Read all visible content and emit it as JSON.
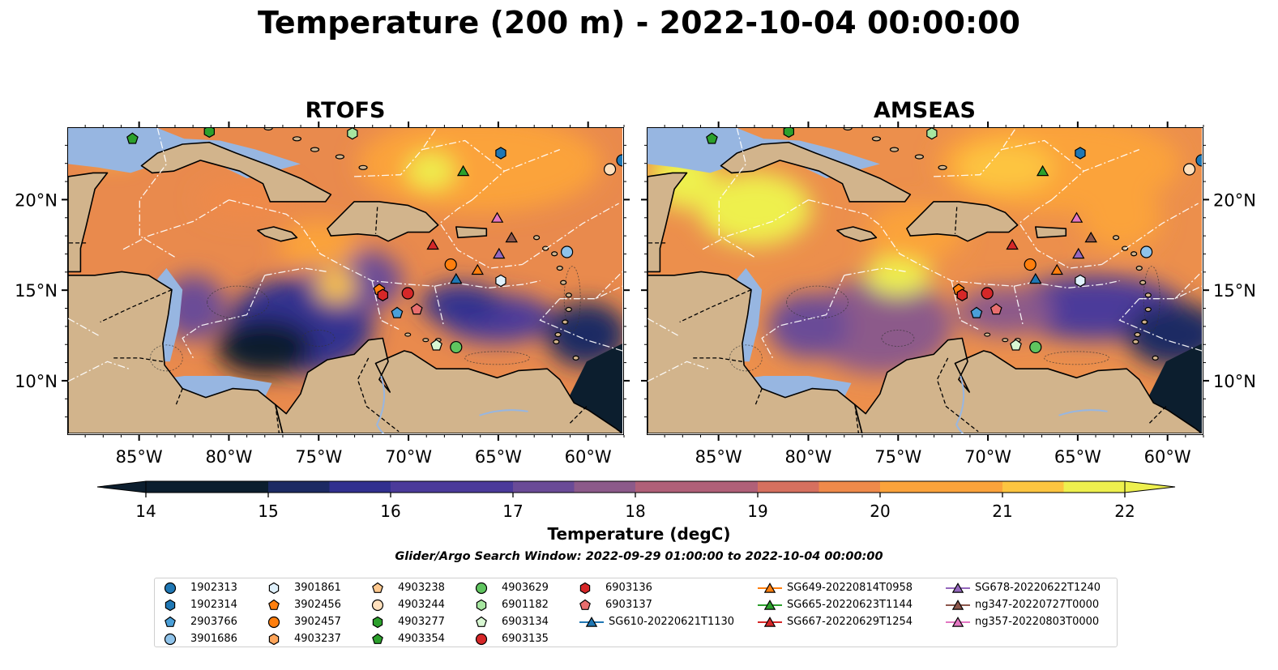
{
  "title": "Temperature (200 m) - 2022-10-04 00:00:00",
  "panels": [
    {
      "name": "RTOFS"
    },
    {
      "name": "AMSEAS"
    }
  ],
  "axes": {
    "longitude_ticks": [
      "85°W",
      "80°W",
      "75°W",
      "70°W",
      "65°W",
      "60°W"
    ],
    "latitude_ticks": [
      "20°N",
      "15°N",
      "10°N"
    ],
    "lon_range": [
      -89,
      -58
    ],
    "lat_range": [
      7,
      24
    ]
  },
  "colorbar": {
    "label": "Temperature (degC)",
    "ticks": [
      "14",
      "15",
      "16",
      "17",
      "18",
      "19",
      "20",
      "21",
      "22"
    ],
    "range": [
      14,
      22
    ],
    "colormap": [
      "#0c1e2e",
      "#1c2a63",
      "#31308f",
      "#4b3a9a",
      "#6a4b97",
      "#8c5a8a",
      "#b06078",
      "#d6705f",
      "#ef8a4a",
      "#fba33b",
      "#fdc540",
      "#eef04e"
    ]
  },
  "search_window": "Glider/Argo Search Window: 2022-09-29 01:00:00 to 2022-10-04 00:00:00",
  "colors": {
    "land": "#d2b48c",
    "shallow_water": "#97b6e1",
    "eez_lines": "#ffffff"
  },
  "legend": {
    "columns": [
      [
        {
          "label": "1902313",
          "marker": "circle",
          "color": "#1f77b4"
        },
        {
          "label": "1902314",
          "marker": "hexagon",
          "color": "#1f77b4"
        },
        {
          "label": "2903766",
          "marker": "pentagon",
          "color": "#4a9fd8"
        },
        {
          "label": "3901686",
          "marker": "circle",
          "color": "#8fc3ea"
        }
      ],
      [
        {
          "label": "3901861",
          "marker": "hexagon",
          "color": "#dff0fb"
        },
        {
          "label": "3902456",
          "marker": "pentagon",
          "color": "#ff7f0e"
        },
        {
          "label": "3902457",
          "marker": "circle",
          "color": "#ff7f0e"
        },
        {
          "label": "4903237",
          "marker": "hexagon",
          "color": "#ffa55a"
        }
      ],
      [
        {
          "label": "4903238",
          "marker": "pentagon",
          "color": "#ffc88e"
        },
        {
          "label": "4903244",
          "marker": "circle",
          "color": "#ffe0bd"
        },
        {
          "label": "4903277",
          "marker": "hexagon",
          "color": "#2ca02c"
        },
        {
          "label": "4903354",
          "marker": "pentagon",
          "color": "#2ca02c"
        }
      ],
      [
        {
          "label": "4903629",
          "marker": "circle",
          "color": "#5fc45f"
        },
        {
          "label": "6901182",
          "marker": "hexagon",
          "color": "#a6e6a0"
        },
        {
          "label": "6903134",
          "marker": "pentagon",
          "color": "#d8f7d2"
        },
        {
          "label": "6903135",
          "marker": "circle",
          "color": "#d62728"
        }
      ],
      [
        {
          "label": "6903136",
          "marker": "hexagon",
          "color": "#d62728"
        },
        {
          "label": "6903137",
          "marker": "pentagon",
          "color": "#e86e6e"
        },
        {
          "label": "SG610-20220621T1130",
          "marker": "triangle",
          "color": "#1f77b4",
          "line": true
        }
      ],
      [
        {
          "label": "SG649-20220814T0958",
          "marker": "triangle",
          "color": "#ff7f0e",
          "line": true
        },
        {
          "label": "SG665-20220623T1144",
          "marker": "triangle",
          "color": "#2ca02c",
          "line": true
        },
        {
          "label": "SG667-20220629T1254",
          "marker": "triangle",
          "color": "#d62728",
          "line": true
        }
      ],
      [
        {
          "label": "SG678-20220622T1240",
          "marker": "triangle",
          "color": "#9467bd",
          "line": true
        },
        {
          "label": "ng347-20220727T0000",
          "marker": "triangle",
          "color": "#8c564b",
          "line": true
        },
        {
          "label": "ng357-20220803T0000",
          "marker": "triangle",
          "color": "#e377c2",
          "line": true
        }
      ]
    ]
  },
  "observations": [
    {
      "id": "1902313",
      "lon": -58.0,
      "lat": 22.2
    },
    {
      "id": "1902314",
      "lon": -64.8,
      "lat": 22.6
    },
    {
      "id": "2903766",
      "lon": -70.6,
      "lat": 13.7
    },
    {
      "id": "3901686",
      "lon": -61.1,
      "lat": 17.1
    },
    {
      "id": "3901861",
      "lon": -64.8,
      "lat": 15.5
    },
    {
      "id": "3902456",
      "lon": -71.6,
      "lat": 15.0
    },
    {
      "id": "3902457",
      "lon": -67.6,
      "lat": 16.4
    },
    {
      "id": "4903237",
      "lon": -71.4,
      "lat": 14.7
    },
    {
      "id": "4903244",
      "lon": -58.7,
      "lat": 21.7
    },
    {
      "id": "4903277",
      "lon": -81.1,
      "lat": 23.8
    },
    {
      "id": "4903354",
      "lon": -85.4,
      "lat": 23.4
    },
    {
      "id": "4903629",
      "lon": -67.3,
      "lat": 11.8
    },
    {
      "id": "6901182",
      "lon": -73.1,
      "lat": 23.7
    },
    {
      "id": "6903134",
      "lon": -68.4,
      "lat": 11.9
    },
    {
      "id": "6903135",
      "lon": -70.0,
      "lat": 14.8
    },
    {
      "id": "6903136",
      "lon": -71.4,
      "lat": 14.7
    },
    {
      "id": "6903137",
      "lon": -69.5,
      "lat": 13.9
    },
    {
      "id": "SG610-20220621T1130",
      "lon": -67.3,
      "lat": 15.6
    },
    {
      "id": "SG649-20220814T0958",
      "lon": -66.1,
      "lat": 16.1
    },
    {
      "id": "SG665-20220623T1144",
      "lon": -66.9,
      "lat": 21.6
    },
    {
      "id": "SG667-20220629T1254",
      "lon": -68.6,
      "lat": 17.5
    },
    {
      "id": "SG678-20220622T1240",
      "lon": -64.9,
      "lat": 17.0
    },
    {
      "id": "ng347-20220727T0000",
      "lon": -64.2,
      "lat": 17.9
    },
    {
      "id": "ng357-20220803T0000",
      "lon": -65.0,
      "lat": 19.0
    }
  ]
}
